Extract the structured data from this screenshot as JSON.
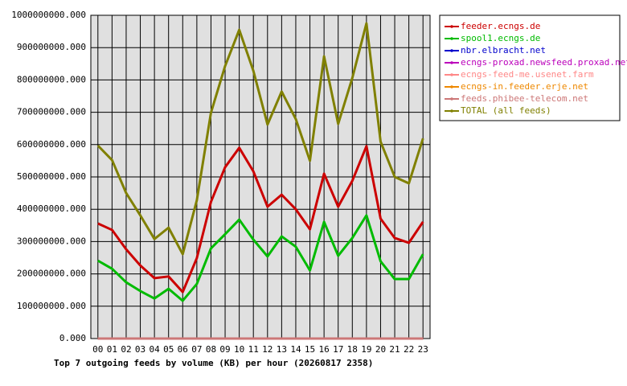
{
  "chart_data": {
    "type": "line",
    "title": "Top 7 outgoing feeds by volume (KB) per hour (20260817 2358)",
    "categories": [
      "00",
      "01",
      "02",
      "03",
      "04",
      "05",
      "06",
      "07",
      "08",
      "09",
      "10",
      "11",
      "12",
      "13",
      "14",
      "15",
      "16",
      "17",
      "18",
      "19",
      "20",
      "21",
      "22",
      "23"
    ],
    "ylim": [
      0,
      1000000000
    ],
    "yticks": [
      {
        "value": 0,
        "label": "0.000"
      },
      {
        "value": 100000000,
        "label": "100000000.000"
      },
      {
        "value": 200000000,
        "label": "200000000.000"
      },
      {
        "value": 300000000,
        "label": "300000000.000"
      },
      {
        "value": 400000000,
        "label": "400000000.000"
      },
      {
        "value": 500000000,
        "label": "500000000.000"
      },
      {
        "value": 600000000,
        "label": "600000000.000"
      },
      {
        "value": 700000000,
        "label": "700000000.000"
      },
      {
        "value": 800000000,
        "label": "800000000.000"
      },
      {
        "value": 900000000,
        "label": "900000000.000"
      },
      {
        "value": 1000000000,
        "label": "1000000000.000"
      }
    ],
    "grid": true,
    "legend": "right",
    "series": [
      {
        "name": "feeder.ecngs.de",
        "color": "#cc0000",
        "values": [
          356000000,
          336000000,
          276000000,
          226000000,
          187000000,
          192000000,
          144000000,
          249000000,
          423000000,
          530000000,
          590000000,
          517000000,
          408000000,
          445000000,
          400000000,
          338000000,
          510000000,
          408000000,
          488000000,
          595000000,
          371000000,
          311000000,
          296000000,
          361000000
        ]
      },
      {
        "name": "spool1.ecngs.de",
        "color": "#00bb00",
        "values": [
          241000000,
          216000000,
          174000000,
          147000000,
          124000000,
          154000000,
          117000000,
          169000000,
          279000000,
          323000000,
          368000000,
          306000000,
          254000000,
          316000000,
          284000000,
          211000000,
          361000000,
          256000000,
          311000000,
          381000000,
          239000000,
          184000000,
          184000000,
          261000000
        ]
      },
      {
        "name": "nbr.elbracht.net",
        "color": "#0000cc",
        "values": [
          0,
          0,
          0,
          0,
          0,
          0,
          0,
          0,
          0,
          0,
          0,
          0,
          0,
          0,
          0,
          0,
          0,
          0,
          0,
          0,
          0,
          0,
          0,
          0
        ]
      },
      {
        "name": "ecngs-proxad.newsfeed.proxad.net",
        "color": "#bb00bb",
        "values": [
          0,
          0,
          0,
          0,
          0,
          0,
          0,
          0,
          0,
          0,
          0,
          0,
          0,
          0,
          0,
          0,
          0,
          0,
          0,
          0,
          0,
          0,
          0,
          0
        ]
      },
      {
        "name": "ecngs-feed-me.usenet.farm",
        "color": "#ff8888",
        "values": [
          0,
          0,
          0,
          0,
          0,
          0,
          0,
          0,
          0,
          0,
          0,
          0,
          0,
          0,
          0,
          0,
          0,
          0,
          0,
          0,
          0,
          0,
          0,
          0
        ]
      },
      {
        "name": "ecngs-in.feeder.erje.net",
        "color": "#ee8800",
        "values": [
          0,
          0,
          0,
          0,
          0,
          0,
          0,
          0,
          0,
          0,
          0,
          0,
          0,
          0,
          0,
          0,
          0,
          0,
          0,
          0,
          0,
          0,
          0,
          0
        ]
      },
      {
        "name": "feeds.phibee-telecom.net",
        "color": "#cc7777",
        "values": [
          0,
          0,
          0,
          0,
          0,
          0,
          0,
          0,
          0,
          0,
          0,
          0,
          0,
          0,
          0,
          0,
          0,
          0,
          0,
          0,
          0,
          0,
          0,
          0
        ]
      },
      {
        "name": "TOTAL (all feeds)",
        "color": "#808000",
        "values": [
          597000000,
          552000000,
          450000000,
          381000000,
          308000000,
          343000000,
          261000000,
          428000000,
          699000000,
          843000000,
          955000000,
          828000000,
          662000000,
          764000000,
          679000000,
          550000000,
          873000000,
          664000000,
          806000000,
          975000000,
          609000000,
          500000000,
          480000000,
          619000000
        ]
      }
    ]
  }
}
